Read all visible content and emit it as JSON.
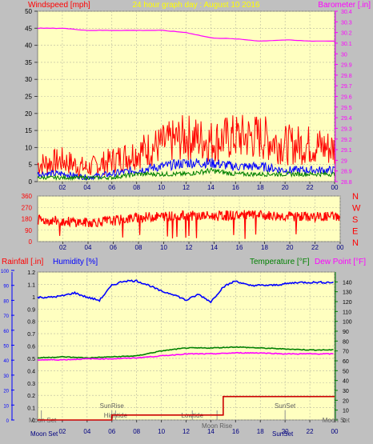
{
  "chart_data": [
    {
      "type": "line",
      "title": "24 hour graph day : August 10 2016",
      "left_axis_label": "Windspeed [mph]",
      "right_axis_label": "Barometer [.in]",
      "ylim_left": [
        0,
        50
      ],
      "ylim_right": [
        28.8,
        30.4
      ],
      "left_ticks": [
        "0",
        "5",
        "10",
        "15",
        "20",
        "25",
        "30",
        "35",
        "40",
        "45",
        "50"
      ],
      "right_ticks": [
        "28.8",
        "28.9",
        "29",
        "29.1",
        "29.2",
        "29.3",
        "29.4",
        "29.5",
        "29.6",
        "29.7",
        "29.8",
        "29.9",
        "30",
        "30.1",
        "30.2",
        "30.3",
        "30.4"
      ],
      "x_ticks": [
        "02",
        "04",
        "06",
        "08",
        "10",
        "12",
        "14",
        "16",
        "18",
        "20",
        "22",
        "00"
      ],
      "grid": true,
      "series": [
        {
          "name": "Barometer",
          "axis": "right",
          "color": "#ff00ff",
          "x": [
            0,
            2,
            4,
            6,
            8,
            10,
            12,
            14,
            16,
            18,
            20,
            22,
            24
          ],
          "values": [
            30.24,
            30.24,
            30.22,
            30.22,
            30.22,
            30.22,
            30.2,
            30.15,
            30.14,
            30.12,
            30.13,
            30.12,
            30.12
          ]
        },
        {
          "name": "Gust",
          "axis": "left",
          "color": "#ff0000",
          "x": [
            0,
            2,
            4,
            6,
            8,
            10,
            12,
            14,
            16,
            18,
            20,
            22,
            24
          ],
          "values": [
            4,
            5,
            3,
            5,
            7,
            9,
            11,
            10,
            11,
            11,
            9,
            9,
            8
          ]
        },
        {
          "name": "Wind speed",
          "axis": "left",
          "color": "#0000ff",
          "x": [
            0,
            2,
            4,
            6,
            8,
            10,
            12,
            14,
            16,
            18,
            20,
            22,
            24
          ],
          "values": [
            2,
            2,
            1,
            2,
            3,
            4,
            5,
            5,
            4,
            4,
            3,
            3,
            3
          ]
        },
        {
          "name": "Average",
          "axis": "left",
          "color": "#008000",
          "x": [
            0,
            2,
            4,
            6,
            8,
            10,
            12,
            14,
            16,
            18,
            20,
            22,
            24
          ],
          "values": [
            1,
            1,
            1,
            1,
            2,
            2,
            2,
            3,
            2,
            2,
            2,
            2,
            2
          ]
        }
      ]
    },
    {
      "type": "scatter",
      "title": "",
      "ylim": [
        0,
        360
      ],
      "left_ticks": [
        "0",
        "90",
        "180",
        "270",
        "360"
      ],
      "right_labels": [
        "N",
        "W",
        "S",
        "E",
        "N"
      ],
      "x_ticks": [
        "02",
        "04",
        "06",
        "08",
        "10",
        "12",
        "14",
        "16",
        "18",
        "20",
        "22",
        "00"
      ],
      "grid": true,
      "series": [
        {
          "name": "Wind direction",
          "color": "#ff0000",
          "x": [
            0,
            2,
            4,
            6,
            8,
            10,
            12,
            14,
            16,
            18,
            20,
            22,
            24
          ],
          "values": [
            170,
            160,
            150,
            165,
            190,
            200,
            205,
            200,
            210,
            205,
            200,
            195,
            200
          ]
        }
      ]
    },
    {
      "type": "line",
      "title": "",
      "left_axis_label": "Rainfall [.in]",
      "humidity_label": "Humidity [%]",
      "temperature_label": "Temperature [°F]",
      "dewpoint_label": "Dew Point [°F]",
      "ylim_rain": [
        0,
        1.2
      ],
      "ylim_humidity": [
        0,
        100
      ],
      "ylim_temp": [
        0,
        150
      ],
      "rain_ticks": [
        "0",
        "0.1",
        "0.2",
        "0.3",
        "0.4",
        "0.5",
        "0.6",
        "0.7",
        "0.8",
        "0.9",
        "1",
        "1.1",
        "1.2"
      ],
      "humidity_ticks": [
        "0",
        "10",
        "20",
        "30",
        "40",
        "50",
        "60",
        "70",
        "80",
        "90",
        "100"
      ],
      "temp_ticks": [
        "0",
        "10",
        "20",
        "30",
        "40",
        "50",
        "60",
        "70",
        "80",
        "90",
        "100",
        "110",
        "120",
        "130",
        "140"
      ],
      "x_ticks": [
        "02",
        "04",
        "06",
        "08",
        "10",
        "12",
        "14",
        "16",
        "18",
        "20",
        "22",
        "00"
      ],
      "grid": true,
      "annotations": [
        {
          "text": "Moon Set",
          "x": 0.3,
          "row": "top"
        },
        {
          "text": "SunRise",
          "x": 6.0,
          "row": "upper"
        },
        {
          "text": "Hightide",
          "x": 6.3,
          "row": "mid"
        },
        {
          "text": "Lowtide",
          "x": 12.5,
          "row": "mid"
        },
        {
          "text": "Moon Rise",
          "x": 14.5,
          "row": "low"
        },
        {
          "text": "SunSet",
          "x": 20.0,
          "row": "upper"
        },
        {
          "text": "Moon Set",
          "x": 24.0,
          "row": "top"
        }
      ],
      "series": [
        {
          "name": "Humidity",
          "axis": "humidity",
          "color": "#0000ff",
          "x": [
            0,
            1,
            2,
            3,
            4,
            5,
            6,
            7,
            8,
            9,
            10,
            11,
            12,
            13,
            14,
            15,
            16,
            17,
            18,
            19,
            20,
            21,
            22,
            23,
            24
          ],
          "values": [
            82,
            82,
            83,
            85,
            82,
            80,
            90,
            93,
            93,
            90,
            86,
            84,
            80,
            84,
            79,
            89,
            93,
            90,
            90,
            90,
            91,
            92,
            92,
            92,
            92
          ]
        },
        {
          "name": "Temperature",
          "axis": "temp",
          "color": "#008000",
          "x": [
            0,
            2,
            4,
            6,
            8,
            10,
            12,
            14,
            16,
            18,
            20,
            22,
            24
          ],
          "values": [
            63,
            64,
            63,
            64,
            65,
            70,
            73,
            73,
            74,
            73,
            72,
            71,
            71
          ]
        },
        {
          "name": "Dew Point",
          "axis": "temp",
          "color": "#ff00ff",
          "x": [
            0,
            2,
            4,
            6,
            8,
            10,
            12,
            14,
            16,
            18,
            20,
            22,
            24
          ],
          "values": [
            61,
            61,
            62,
            62,
            63,
            65,
            67,
            67,
            68,
            68,
            67,
            67,
            67
          ]
        },
        {
          "name": "Rainfall",
          "axis": "rain",
          "color": "#cc0000",
          "x": [
            0,
            1,
            2,
            3,
            4,
            5,
            6,
            7,
            8,
            9,
            10,
            11,
            12,
            13,
            14,
            15,
            16,
            17,
            18,
            19,
            20,
            21,
            22,
            23,
            24
          ],
          "values": [
            0,
            0,
            0,
            0,
            0,
            0,
            0.04,
            0.04,
            0.04,
            0.04,
            0.04,
            0.04,
            0.04,
            0.04,
            0.04,
            0.19,
            0.19,
            0.19,
            0.19,
            0.19,
            0.19,
            0.19,
            0.19,
            0.19,
            0.19
          ]
        }
      ]
    }
  ]
}
